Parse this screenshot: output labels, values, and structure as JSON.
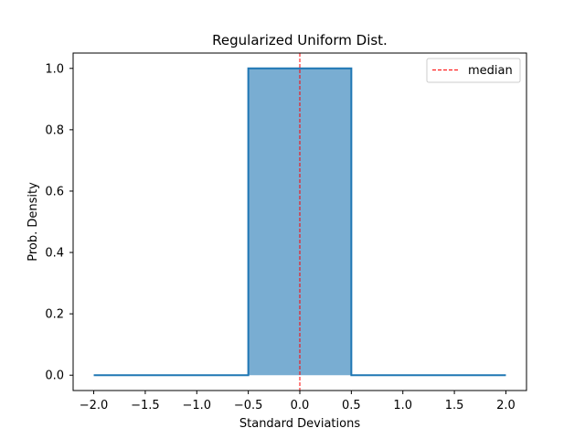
{
  "chart_data": {
    "type": "area",
    "title": "Regularized Uniform Dist.",
    "xlabel": "Standard Deviations",
    "ylabel": "Prob. Density",
    "xlim": [
      -2.2,
      2.2
    ],
    "ylim": [
      -0.05,
      1.05
    ],
    "xticks": [
      -2.0,
      -1.5,
      -1.0,
      -0.5,
      0.0,
      0.5,
      1.0,
      1.5,
      2.0
    ],
    "xtick_labels": [
      "−2.0",
      "−1.5",
      "−1.0",
      "−0.5",
      "0.0",
      "0.5",
      "1.0",
      "1.5",
      "2.0"
    ],
    "yticks": [
      0.0,
      0.2,
      0.4,
      0.6,
      0.8,
      1.0
    ],
    "ytick_labels": [
      "0.0",
      "0.2",
      "0.4",
      "0.6",
      "0.8",
      "1.0"
    ],
    "series": [
      {
        "x": [
          -2.0,
          -0.5,
          -0.5,
          0.5,
          0.5,
          2.0
        ],
        "y": [
          0.0,
          0.0,
          1.0,
          1.0,
          0.0,
          0.0
        ],
        "line_color": "#1f77b4",
        "fill_color": "#1f77b4",
        "fill_opacity": 0.6
      }
    ],
    "reference_lines": [
      {
        "name": "median",
        "x": 0.0,
        "color": "#ff0000",
        "style": "dashed"
      }
    ],
    "legend": {
      "placement": "top-right",
      "entries": [
        "median"
      ]
    },
    "grid": false
  }
}
